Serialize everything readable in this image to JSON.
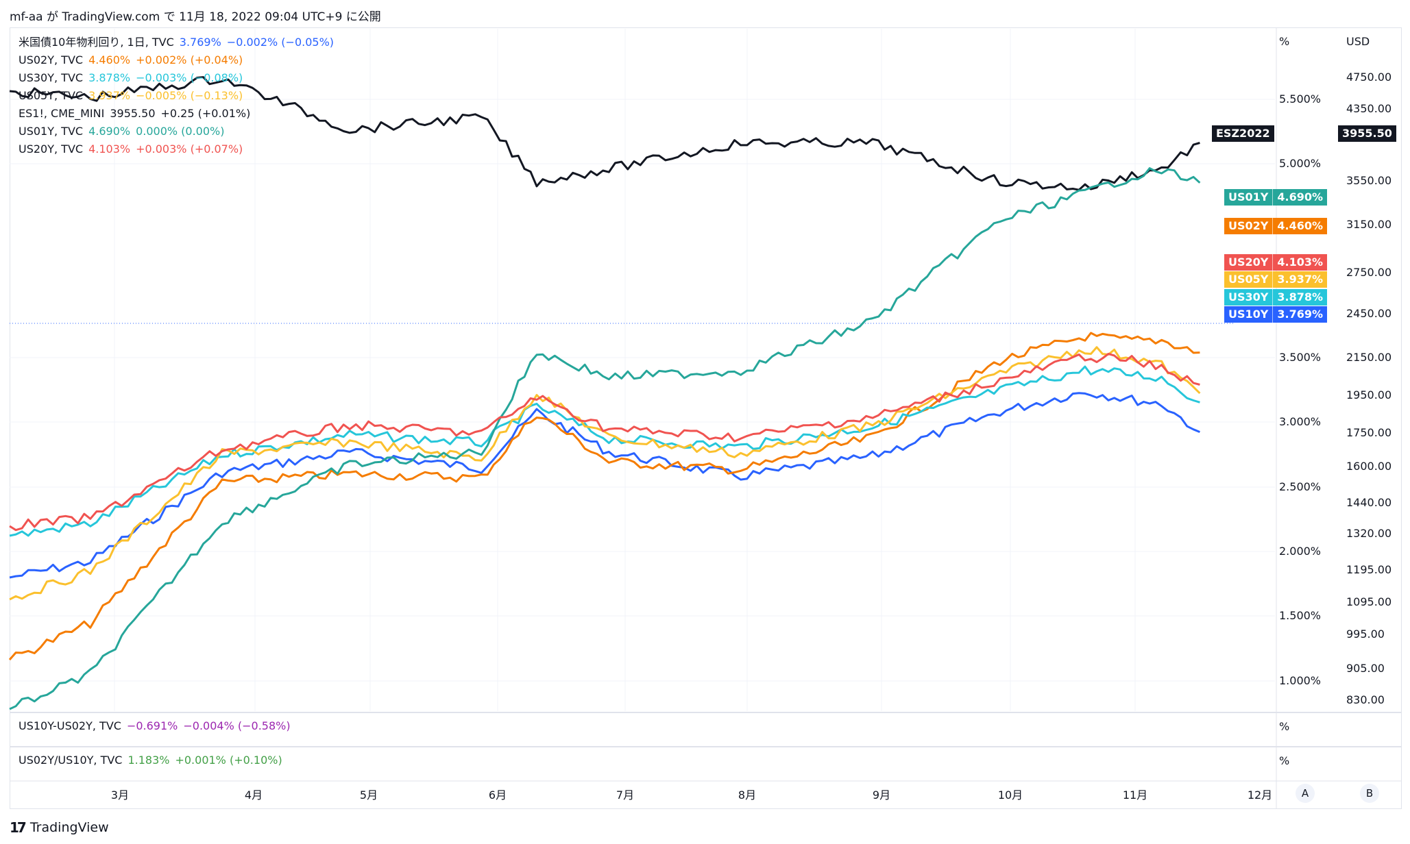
{
  "header": {
    "user": "mf-aa",
    "particle1": "が",
    "site": "TradingView.com",
    "particle2": "で",
    "timestamp": "11月 18, 2022 09:04 UTC+9",
    "suffix": "に公開"
  },
  "legend": [
    {
      "name": "米国債10年物利回り, 1日, TVC",
      "value": "3.769%",
      "change": "−0.002% (−0.05%)",
      "color": "#2962ff"
    },
    {
      "name": "US02Y, TVC",
      "value": "4.460%",
      "change": "+0.002% (+0.04%)",
      "color": "#f57c00"
    },
    {
      "name": "US30Y, TVC",
      "value": "3.878%",
      "change": "−0.003% (−0.08%)",
      "color": "#26c6da"
    },
    {
      "name": "US05Y, TVC",
      "value": "3.937%",
      "change": "−0.005% (−0.13%)",
      "color": "#fbc02d"
    },
    {
      "name": "ES1!, CME_MINI",
      "value": "3955.50",
      "change": "+0.25 (+0.01%)",
      "color": "#131722"
    },
    {
      "name": "US01Y, TVC",
      "value": "4.690%",
      "change": "0.000% (0.00%)",
      "color": "#26a69a"
    },
    {
      "name": "US20Y, TVC",
      "value": "4.103%",
      "change": "+0.003% (+0.07%)",
      "color": "#f05350"
    }
  ],
  "pane2": {
    "name": "US10Y-US02Y, TVC",
    "value": "−0.691%",
    "change": "−0.004% (−0.58%)",
    "color": "#9c27b0",
    "unit": "%"
  },
  "pane3": {
    "name": "US02Y/US10Y, TVC",
    "value": "1.183%",
    "change": "+0.001% (+0.10%)",
    "color": "#43a047",
    "unit": "%"
  },
  "axis_left_unit": "%",
  "axis_right_unit": "USD",
  "footer": {
    "logo": "17",
    "brand": "TradingView"
  },
  "buttons": {
    "a": "A",
    "b": "B"
  },
  "chart_data": {
    "type": "line",
    "x_ticks": [
      "3月",
      "4月",
      "5月",
      "6月",
      "7月",
      "8月",
      "9月",
      "10月",
      "11月",
      "12月"
    ],
    "y_left_ticks": [
      "5.500%",
      "5.000%",
      "3.500%",
      "3.000%",
      "2.500%",
      "2.000%",
      "1.500%",
      "1.000%"
    ],
    "y_right_ticks": [
      "4750.00",
      "4350.00",
      "3550.00",
      "3150.00",
      "2750.00",
      "2450.00",
      "2150.00",
      "1950.00",
      "1750.00",
      "1600.00",
      "1440.00",
      "1320.00",
      "1195.00",
      "1095.00",
      "995.00",
      "905.00",
      "830.00"
    ],
    "y_left_axis_type": "log",
    "y_right_axis_type": "log",
    "x_range": [
      "2022-02-10",
      "2022-12-05"
    ],
    "last_value_labels": [
      {
        "name": "ESZ2022",
        "value": "3955.50",
        "color": "#131722"
      },
      {
        "name": "US01Y",
        "value": "4.690%",
        "color": "#26a69a"
      },
      {
        "name": "US02Y",
        "value": "4.460%",
        "color": "#f57c00"
      },
      {
        "name": "US20Y",
        "value": "4.103%",
        "color": "#f05350"
      },
      {
        "name": "US05Y",
        "value": "3.937%",
        "color": "#fbc02d"
      },
      {
        "name": "US30Y",
        "value": "3.878%",
        "color": "#26c6da"
      },
      {
        "name": "US10Y",
        "value": "3.769%",
        "color": "#2962ff"
      }
    ],
    "percent_change_points": [
      "2022-02-10",
      "2022-03-01",
      "2022-04-01",
      "2022-05-01",
      "2022-06-01",
      "2022-06-14",
      "2022-07-01",
      "2022-08-01",
      "2022-09-01",
      "2022-10-01",
      "2022-10-21",
      "2022-11-01",
      "2022-11-08",
      "2022-11-17"
    ],
    "series": [
      {
        "name": "US10Y",
        "color": "#2962ff",
        "pct": [
          0,
          8,
          52,
          62,
          54,
          82,
          62,
          50,
          60,
          82,
          92,
          88,
          86,
          72
        ]
      },
      {
        "name": "US02Y",
        "color": "#f57c00",
        "pct": [
          0,
          18,
          88,
          92,
          90,
          122,
          98,
          94,
          110,
          148,
          160,
          158,
          158,
          152
        ]
      },
      {
        "name": "US30Y",
        "color": "#26c6da",
        "pct": [
          0,
          6,
          40,
          50,
          46,
          64,
          48,
          44,
          54,
          72,
          82,
          80,
          78,
          66
        ]
      },
      {
        "name": "US05Y",
        "color": "#fbc02d",
        "pct": [
          0,
          14,
          72,
          78,
          70,
          102,
          80,
          72,
          86,
          112,
          124,
          120,
          116,
          102
        ]
      },
      {
        "name": "ES1!",
        "color": "#131722",
        "pct": [
          0,
          -1,
          2,
          -6,
          -4,
          -14,
          -12,
          -8,
          -8,
          -14,
          -15,
          -13,
          -12,
          -8
        ]
      },
      {
        "name": "US01Y",
        "color": "#26a69a",
        "pct": [
          0,
          28,
          150,
          195,
          205,
          285,
          265,
          270,
          310,
          390,
          412,
          425,
          430,
          420
        ]
      },
      {
        "name": "US20Y",
        "color": "#f05350",
        "pct": [
          0,
          4,
          38,
          50,
          46,
          64,
          48,
          44,
          54,
          72,
          84,
          82,
          78,
          70
        ]
      }
    ]
  }
}
